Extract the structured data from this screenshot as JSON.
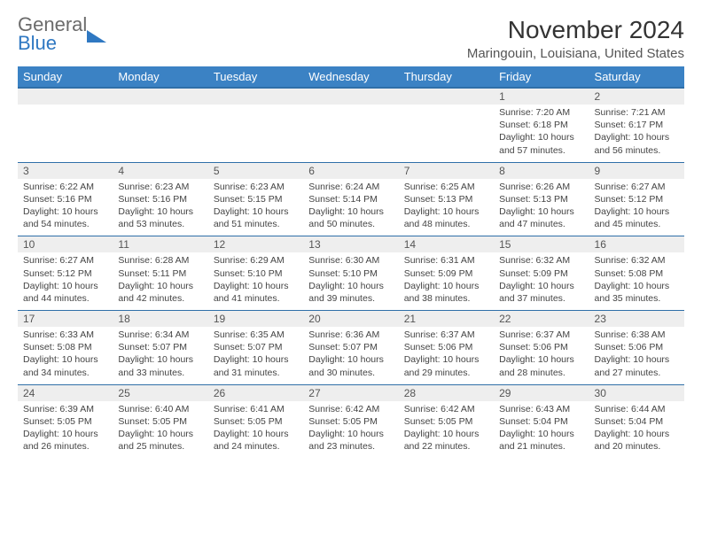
{
  "brand": {
    "line1": "General",
    "line2": "Blue"
  },
  "title": "November 2024",
  "location": "Maringouin, Louisiana, United States",
  "colors": {
    "header_bg": "#3b82c4",
    "header_border": "#2f6fa8",
    "daynum_bg": "#eeeeee",
    "text": "#333333",
    "brand_blue": "#2f78c2"
  },
  "day_headers": [
    "Sunday",
    "Monday",
    "Tuesday",
    "Wednesday",
    "Thursday",
    "Friday",
    "Saturday"
  ],
  "weeks": [
    [
      null,
      null,
      null,
      null,
      null,
      {
        "n": "1",
        "sr": "7:20 AM",
        "ss": "6:18 PM",
        "dl": "10 hours and 57 minutes."
      },
      {
        "n": "2",
        "sr": "7:21 AM",
        "ss": "6:17 PM",
        "dl": "10 hours and 56 minutes."
      }
    ],
    [
      {
        "n": "3",
        "sr": "6:22 AM",
        "ss": "5:16 PM",
        "dl": "10 hours and 54 minutes."
      },
      {
        "n": "4",
        "sr": "6:23 AM",
        "ss": "5:16 PM",
        "dl": "10 hours and 53 minutes."
      },
      {
        "n": "5",
        "sr": "6:23 AM",
        "ss": "5:15 PM",
        "dl": "10 hours and 51 minutes."
      },
      {
        "n": "6",
        "sr": "6:24 AM",
        "ss": "5:14 PM",
        "dl": "10 hours and 50 minutes."
      },
      {
        "n": "7",
        "sr": "6:25 AM",
        "ss": "5:13 PM",
        "dl": "10 hours and 48 minutes."
      },
      {
        "n": "8",
        "sr": "6:26 AM",
        "ss": "5:13 PM",
        "dl": "10 hours and 47 minutes."
      },
      {
        "n": "9",
        "sr": "6:27 AM",
        "ss": "5:12 PM",
        "dl": "10 hours and 45 minutes."
      }
    ],
    [
      {
        "n": "10",
        "sr": "6:27 AM",
        "ss": "5:12 PM",
        "dl": "10 hours and 44 minutes."
      },
      {
        "n": "11",
        "sr": "6:28 AM",
        "ss": "5:11 PM",
        "dl": "10 hours and 42 minutes."
      },
      {
        "n": "12",
        "sr": "6:29 AM",
        "ss": "5:10 PM",
        "dl": "10 hours and 41 minutes."
      },
      {
        "n": "13",
        "sr": "6:30 AM",
        "ss": "5:10 PM",
        "dl": "10 hours and 39 minutes."
      },
      {
        "n": "14",
        "sr": "6:31 AM",
        "ss": "5:09 PM",
        "dl": "10 hours and 38 minutes."
      },
      {
        "n": "15",
        "sr": "6:32 AM",
        "ss": "5:09 PM",
        "dl": "10 hours and 37 minutes."
      },
      {
        "n": "16",
        "sr": "6:32 AM",
        "ss": "5:08 PM",
        "dl": "10 hours and 35 minutes."
      }
    ],
    [
      {
        "n": "17",
        "sr": "6:33 AM",
        "ss": "5:08 PM",
        "dl": "10 hours and 34 minutes."
      },
      {
        "n": "18",
        "sr": "6:34 AM",
        "ss": "5:07 PM",
        "dl": "10 hours and 33 minutes."
      },
      {
        "n": "19",
        "sr": "6:35 AM",
        "ss": "5:07 PM",
        "dl": "10 hours and 31 minutes."
      },
      {
        "n": "20",
        "sr": "6:36 AM",
        "ss": "5:07 PM",
        "dl": "10 hours and 30 minutes."
      },
      {
        "n": "21",
        "sr": "6:37 AM",
        "ss": "5:06 PM",
        "dl": "10 hours and 29 minutes."
      },
      {
        "n": "22",
        "sr": "6:37 AM",
        "ss": "5:06 PM",
        "dl": "10 hours and 28 minutes."
      },
      {
        "n": "23",
        "sr": "6:38 AM",
        "ss": "5:06 PM",
        "dl": "10 hours and 27 minutes."
      }
    ],
    [
      {
        "n": "24",
        "sr": "6:39 AM",
        "ss": "5:05 PM",
        "dl": "10 hours and 26 minutes."
      },
      {
        "n": "25",
        "sr": "6:40 AM",
        "ss": "5:05 PM",
        "dl": "10 hours and 25 minutes."
      },
      {
        "n": "26",
        "sr": "6:41 AM",
        "ss": "5:05 PM",
        "dl": "10 hours and 24 minutes."
      },
      {
        "n": "27",
        "sr": "6:42 AM",
        "ss": "5:05 PM",
        "dl": "10 hours and 23 minutes."
      },
      {
        "n": "28",
        "sr": "6:42 AM",
        "ss": "5:05 PM",
        "dl": "10 hours and 22 minutes."
      },
      {
        "n": "29",
        "sr": "6:43 AM",
        "ss": "5:04 PM",
        "dl": "10 hours and 21 minutes."
      },
      {
        "n": "30",
        "sr": "6:44 AM",
        "ss": "5:04 PM",
        "dl": "10 hours and 20 minutes."
      }
    ]
  ],
  "labels": {
    "sunrise": "Sunrise:",
    "sunset": "Sunset:",
    "daylight": "Daylight:"
  }
}
